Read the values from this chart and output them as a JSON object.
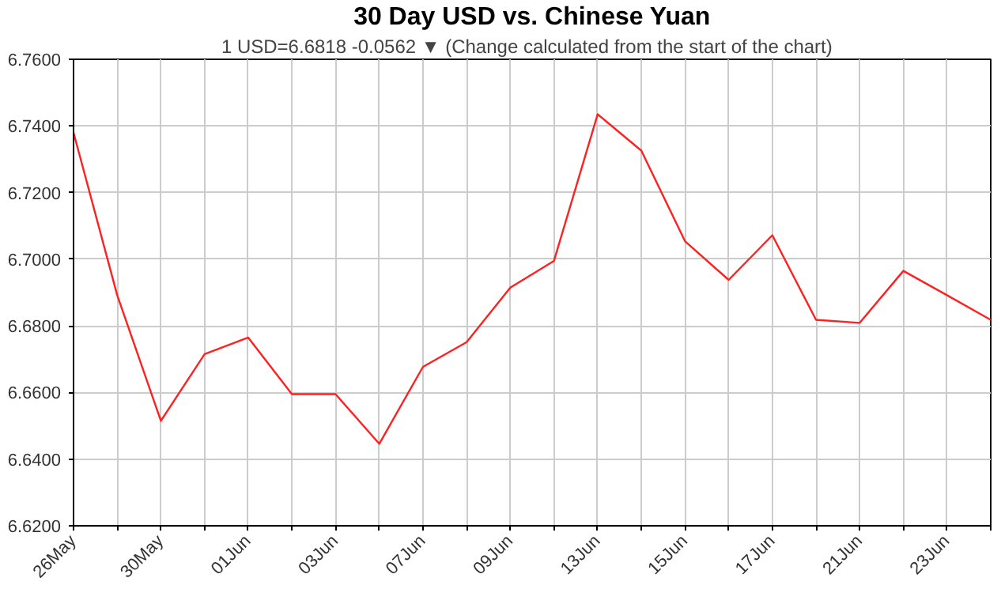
{
  "chart_data": {
    "type": "line",
    "title": "30 Day USD vs. Chinese Yuan",
    "subtitle": "1 USD=6.6818  -0.0562 ▼  (Change calculated from the start of the chart)",
    "categories": [
      "26May",
      null,
      "30May",
      null,
      "01Jun",
      null,
      "03Jun",
      null,
      "07Jun",
      null,
      "09Jun",
      null,
      "13Jun",
      null,
      "15Jun",
      null,
      "17Jun",
      null,
      "21Jun",
      null,
      "23Jun",
      null
    ],
    "series": [
      {
        "color": "#ff2020",
        "values": [
          6.738,
          6.6892,
          6.6515,
          6.6715,
          6.6765,
          6.6595,
          6.6595,
          6.6446,
          6.6677,
          6.6751,
          6.6915,
          6.6995,
          6.7435,
          6.7326,
          6.7054,
          6.6938,
          6.7072,
          6.6818,
          6.6809,
          6.6965,
          6.6892,
          6.6818
        ]
      }
    ],
    "ylim": [
      6.62,
      6.76
    ],
    "yticks": [
      {
        "value": 6.62,
        "label": "6.6200"
      },
      {
        "value": 6.64,
        "label": "6.6400"
      },
      {
        "value": 6.66,
        "label": "6.6600"
      },
      {
        "value": 6.68,
        "label": "6.6800"
      },
      {
        "value": 6.7,
        "label": "6.7000"
      },
      {
        "value": 6.72,
        "label": "6.7200"
      },
      {
        "value": 6.74,
        "label": "6.7400"
      },
      {
        "value": 6.76,
        "label": "6.7600"
      }
    ],
    "grid": true,
    "marker": "none",
    "line_style": "solid"
  }
}
